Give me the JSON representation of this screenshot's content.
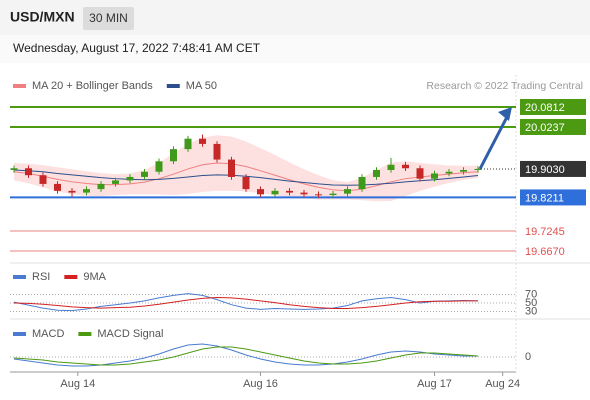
{
  "header": {
    "symbol": "USD/MXN",
    "interval": "30 MIN",
    "timestamp": "Wednesday, August 17, 2022 7:48:41 AM CET"
  },
  "chart_data": [
    {
      "type": "candlestick",
      "credit": "Research © 2022 Trading Central",
      "up_color": "#3f9a1c",
      "down_color": "#c62828",
      "xlim": [
        0,
        35
      ],
      "ylim": [
        19.6354,
        20.1732
      ],
      "open": [
        19.9,
        19.905,
        19.885,
        19.86,
        19.84,
        19.835,
        19.845,
        19.86,
        19.87,
        19.88,
        19.895,
        19.925,
        19.96,
        19.99,
        19.975,
        19.93,
        19.88,
        19.845,
        19.83,
        19.84,
        19.835,
        19.83,
        19.828,
        19.832,
        19.845,
        19.88,
        19.9,
        19.915,
        19.905,
        19.875,
        19.89,
        19.895,
        19.9
      ],
      "high": [
        19.913,
        19.913,
        19.893,
        19.868,
        19.848,
        19.853,
        19.868,
        19.878,
        19.888,
        19.903,
        19.933,
        19.968,
        19.998,
        20.002,
        19.983,
        19.938,
        19.888,
        19.853,
        19.848,
        19.848,
        19.843,
        19.838,
        19.84,
        19.853,
        19.888,
        19.908,
        19.935,
        19.923,
        19.913,
        19.898,
        19.903,
        19.908,
        19.911
      ],
      "low": [
        19.892,
        19.877,
        19.852,
        19.832,
        19.822,
        19.827,
        19.837,
        19.852,
        19.862,
        19.872,
        19.887,
        19.917,
        19.952,
        19.967,
        19.922,
        19.872,
        19.837,
        19.822,
        19.822,
        19.827,
        19.822,
        19.82,
        19.82,
        19.824,
        19.837,
        19.872,
        19.892,
        19.897,
        19.867,
        19.867,
        19.882,
        19.887,
        19.892
      ],
      "close": [
        19.905,
        19.885,
        19.86,
        19.84,
        19.835,
        19.845,
        19.86,
        19.87,
        19.88,
        19.895,
        19.925,
        19.96,
        19.99,
        19.975,
        19.93,
        19.88,
        19.845,
        19.83,
        19.84,
        19.835,
        19.83,
        19.828,
        19.832,
        19.845,
        19.88,
        19.9,
        19.915,
        19.905,
        19.875,
        19.89,
        19.895,
        19.9,
        19.903
      ],
      "series": [
        {
          "name": "MA 20 + Bollinger Bands",
          "color": "#f08080",
          "band_color": "#fde0e0",
          "values": [
            19.895,
            19.89,
            19.882,
            19.873,
            19.866,
            19.861,
            19.858,
            19.858,
            19.86,
            19.865,
            19.875,
            19.888,
            19.903,
            19.915,
            19.92,
            19.918,
            19.91,
            19.898,
            19.885,
            19.872,
            19.86,
            19.85,
            19.843,
            19.84,
            19.845,
            19.855,
            19.866,
            19.875,
            19.88,
            19.884,
            19.888,
            19.892,
            19.895
          ],
          "upper": [
            19.92,
            19.918,
            19.914,
            19.908,
            19.902,
            19.896,
            19.891,
            19.888,
            19.89,
            19.9,
            19.92,
            19.948,
            19.975,
            19.993,
            20.0,
            19.996,
            19.982,
            19.963,
            19.943,
            19.922,
            19.902,
            19.885,
            19.871,
            19.865,
            19.877,
            19.9,
            19.921,
            19.925,
            19.92,
            19.916,
            19.913,
            19.912,
            19.913
          ],
          "lower": [
            19.87,
            19.862,
            19.85,
            19.838,
            19.83,
            19.826,
            19.825,
            19.828,
            19.83,
            19.83,
            19.83,
            19.828,
            19.831,
            19.837,
            19.84,
            19.84,
            19.838,
            19.833,
            19.827,
            19.822,
            19.818,
            19.815,
            19.815,
            19.815,
            19.813,
            19.81,
            19.811,
            19.825,
            19.84,
            19.852,
            19.863,
            19.872,
            19.877
          ]
        },
        {
          "name": "MA 50",
          "color": "#2c4f8c",
          "values": [
            19.9,
            19.898,
            19.895,
            19.89,
            19.886,
            19.882,
            19.878,
            19.875,
            19.873,
            19.872,
            19.873,
            19.876,
            19.88,
            19.884,
            19.886,
            19.885,
            19.882,
            19.878,
            19.873,
            19.868,
            19.864,
            19.86,
            19.857,
            19.856,
            19.857,
            19.859,
            19.862,
            19.866,
            19.869,
            19.872,
            19.876,
            19.88,
            19.884
          ]
        }
      ],
      "levels": [
        {
          "value": 20.0812,
          "label": "20.0812",
          "color": "#4c9a12",
          "boxed": true
        },
        {
          "value": 20.0237,
          "label": "20.0237",
          "color": "#4c9a12",
          "boxed": true
        },
        {
          "value": 19.903,
          "label": "19.9030",
          "color": "#333333",
          "boxed": true
        },
        {
          "value": 19.8211,
          "label": "19.8211",
          "color": "#2f6fdb",
          "boxed": true
        },
        {
          "value": 19.7245,
          "label": "19.7245",
          "color": "#e05050",
          "boxed": false
        },
        {
          "value": 19.667,
          "label": "19.6670",
          "color": "#e05050",
          "boxed": false
        }
      ]
    },
    {
      "type": "line",
      "xlim": [
        0,
        35
      ],
      "ylim": [
        10,
        90
      ],
      "yticks": [
        70,
        50,
        30
      ],
      "series": [
        {
          "name": "RSI",
          "color": "#4a7bd0",
          "values": [
            52,
            45,
            38,
            33,
            32,
            36,
            42,
            46,
            50,
            55,
            62,
            68,
            72,
            68,
            58,
            46,
            38,
            35,
            37,
            36,
            35,
            36,
            38,
            44,
            55,
            60,
            63,
            58,
            50,
            54,
            55,
            56,
            55
          ]
        },
        {
          "name": "9MA",
          "color": "#d42020",
          "values": [
            50,
            49,
            47,
            44,
            41,
            39,
            38,
            39,
            40,
            43,
            47,
            52,
            57,
            61,
            63,
            62,
            59,
            55,
            51,
            46,
            42,
            39,
            37,
            37,
            39,
            42,
            46,
            50,
            53,
            54,
            54,
            55,
            55
          ]
        }
      ]
    },
    {
      "type": "line",
      "xlim": [
        0,
        35
      ],
      "ylim": [
        -0.015,
        0.015
      ],
      "yticks": [
        0
      ],
      "xticks": [
        {
          "value": 4.4,
          "label": "Aug 14"
        },
        {
          "value": 17,
          "label": "Aug 16"
        },
        {
          "value": 29,
          "label": "Aug 17"
        },
        {
          "value": 33.7,
          "label": "Aug 24"
        }
      ],
      "series": [
        {
          "name": "MACD",
          "color": "#4a7bd0",
          "values": [
            -0.002,
            -0.004,
            -0.006,
            -0.008,
            -0.009,
            -0.009,
            -0.008,
            -0.006,
            -0.004,
            -0.001,
            0.003,
            0.008,
            0.012,
            0.013,
            0.011,
            0.007,
            0.002,
            -0.002,
            -0.005,
            -0.007,
            -0.008,
            -0.008,
            -0.007,
            -0.005,
            -0.002,
            0.002,
            0.005,
            0.006,
            0.005,
            0.003,
            0.002,
            0.001,
            0.001
          ]
        },
        {
          "name": "MACD Signal",
          "color": "#4c9a12",
          "values": [
            -0.001,
            -0.002,
            -0.003,
            -0.005,
            -0.006,
            -0.007,
            -0.008,
            -0.008,
            -0.007,
            -0.005,
            -0.003,
            0.0,
            0.004,
            0.008,
            0.01,
            0.01,
            0.008,
            0.005,
            0.002,
            -0.001,
            -0.004,
            -0.006,
            -0.007,
            -0.007,
            -0.006,
            -0.004,
            -0.001,
            0.002,
            0.004,
            0.004,
            0.003,
            0.002,
            0.001
          ]
        }
      ]
    }
  ]
}
